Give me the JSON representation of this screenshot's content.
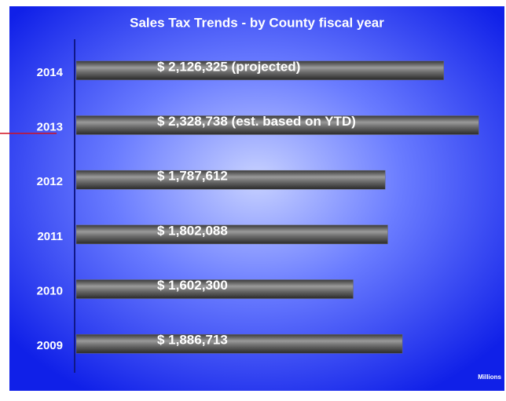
{
  "chart_data": {
    "type": "hbar",
    "title": "Sales Tax Trends - by County fiscal year",
    "x_label": "Millions",
    "categories": [
      "2014",
      "2013",
      "2012",
      "2011",
      "2010",
      "2009"
    ],
    "values": [
      2126325,
      2328738,
      1787612,
      1802088,
      1602300,
      1886713
    ],
    "value_labels": [
      "$ 2,126,325 (projected)",
      "$ 2,328,738 (est. based on YTD)",
      "$ 1,787,612",
      "$ 1,802,088",
      "$ 1,602,300",
      "$ 1,886,713"
    ],
    "color": "#6a6a6a",
    "xlim": [
      0,
      2400000
    ]
  }
}
